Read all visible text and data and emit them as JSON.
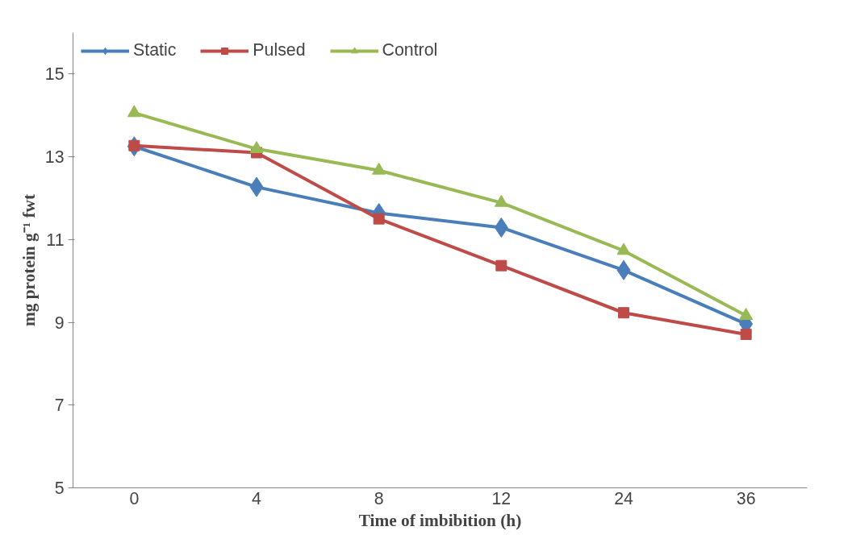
{
  "chart_data": {
    "type": "line",
    "xlabel": "Time of imbibition (h)",
    "ylabel": "mg protein g⁻¹ fwt",
    "categories": [
      "0",
      "4",
      "8",
      "12",
      "24",
      "36"
    ],
    "series": [
      {
        "name": "Static",
        "color": "#4a7ebb",
        "marker": "diamond",
        "values": [
          13.25,
          12.27,
          11.64,
          11.29,
          10.26,
          8.96
        ]
      },
      {
        "name": "Pulsed",
        "color": "#be4b48",
        "marker": "square",
        "values": [
          13.27,
          13.1,
          11.5,
          10.37,
          9.23,
          8.71
        ]
      },
      {
        "name": "Control",
        "color": "#98b954",
        "marker": "triangle",
        "values": [
          14.06,
          13.19,
          12.67,
          11.89,
          10.73,
          9.16
        ]
      }
    ],
    "ylim": [
      5,
      16
    ],
    "yticks": [
      5,
      7,
      9,
      11,
      13,
      15
    ],
    "grid": false,
    "legend": "top",
    "line_style": "solid"
  }
}
